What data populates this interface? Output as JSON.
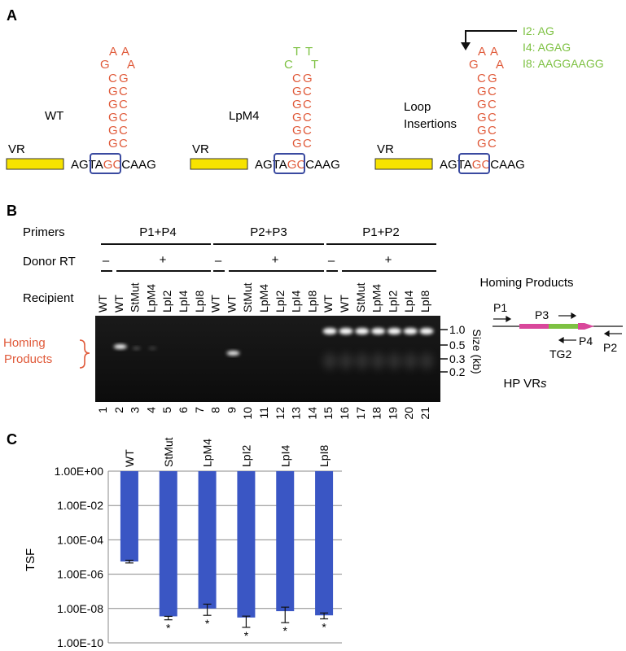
{
  "panel_a": {
    "letter": "A",
    "constructs": [
      {
        "label": "WT",
        "vr": "VR",
        "loop": [
          "G",
          "A",
          "A",
          "A"
        ],
        "loop_color": "#e05a3a",
        "stem_left": [
          "C",
          "G",
          "G",
          "G",
          "G",
          "G"
        ],
        "stem_right": [
          "G",
          "C",
          "C",
          "C",
          "C",
          "C"
        ],
        "base_left": [
          "A",
          "G",
          "T",
          "A",
          "G"
        ],
        "base_right": [
          "C",
          "C",
          "A",
          "A",
          "G"
        ]
      },
      {
        "label": "LpM4",
        "vr": "VR",
        "loop": [
          "C",
          "T",
          "T",
          "T"
        ],
        "loop_color": "#7dc142",
        "stem_left": [
          "C",
          "G",
          "G",
          "G",
          "G",
          "G"
        ],
        "stem_right": [
          "G",
          "C",
          "C",
          "C",
          "C",
          "C"
        ],
        "base_left": [
          "A",
          "G",
          "T",
          "A",
          "G"
        ],
        "base_right": [
          "C",
          "C",
          "A",
          "A",
          "G"
        ]
      },
      {
        "label1": "Loop",
        "label2": "Insertions",
        "vr": "VR",
        "loop": [
          "G",
          "A",
          "A",
          "A"
        ],
        "loop_color": "#e05a3a",
        "stem_left": [
          "C",
          "G",
          "G",
          "G",
          "G",
          "G"
        ],
        "stem_right": [
          "G",
          "C",
          "C",
          "C",
          "C",
          "C"
        ],
        "base_left": [
          "A",
          "G",
          "T",
          "A",
          "G"
        ],
        "base_right": [
          "C",
          "C",
          "A",
          "A",
          "G"
        ]
      }
    ],
    "insertions": [
      "I2: AG",
      "I4: AGAG",
      "I8: AAGGAAGG"
    ]
  },
  "panel_b": {
    "letter": "B",
    "row_labels": {
      "primers": "Primers",
      "donor": "Donor RT",
      "recipient": "Recipient"
    },
    "primer_groups": [
      "P1+P4",
      "P2+P3",
      "P1+P2"
    ],
    "minus": "–",
    "plus": "+",
    "lane_labels": [
      "WT",
      "WT",
      "StMut",
      "LpM4",
      "LpI2",
      "LpI4",
      "LpI8",
      "WT",
      "StMut",
      "LpM4",
      "LpI2",
      "LpI4",
      "LpI8",
      "WT",
      "StMut",
      "LpM4",
      "LpI2",
      "LpI4",
      "LpI8"
    ],
    "lane_numbers": [
      "1",
      "2",
      "3",
      "4",
      "5",
      "6",
      "7",
      "8",
      "9",
      "10",
      "11",
      "12",
      "13",
      "14",
      "15",
      "16",
      "17",
      "18",
      "19",
      "20",
      "21"
    ],
    "homing_label1": "Homing",
    "homing_label2": "Products",
    "size_marks": [
      "1.0",
      "0.5",
      "0.3",
      "0.2"
    ],
    "size_axis": "Size (kb)",
    "schematic": {
      "title": "Homing Products",
      "p1": "P1",
      "p2": "P2",
      "p3": "P3",
      "p4": "P4",
      "tg2": "TG2",
      "hp1": "HP VR",
      "hp2": "s"
    }
  },
  "panel_c": {
    "letter": "C",
    "chart_data": {
      "type": "bar",
      "categories": [
        "WT",
        "StMut",
        "LpM4",
        "LpI2",
        "LpI4",
        "LpI8"
      ],
      "values": [
        5.5e-06,
        3.5e-09,
        1e-08,
        3e-09,
        7e-09,
        4e-09
      ],
      "error_low": [
        4.5e-06,
        2.2e-09,
        4e-09,
        8e-10,
        1.5e-09,
        2.5e-09
      ],
      "error_high": [
        6.5e-06,
        3.5e-09,
        1.8e-08,
        3.6e-09,
        1.2e-08,
        5.5e-09
      ],
      "significance": [
        "",
        "*",
        "*",
        "*",
        "*",
        "*"
      ],
      "ylabel": "TSF",
      "yscale": "log",
      "ylim": [
        1e-10,
        1
      ],
      "ytick_labels": [
        "1.00E+00",
        "1.00E-02",
        "1.00E-04",
        "1.00E-06",
        "1.00E-08",
        "1.00E-10"
      ],
      "bar_color": "#3a56c4",
      "grid": true
    }
  }
}
